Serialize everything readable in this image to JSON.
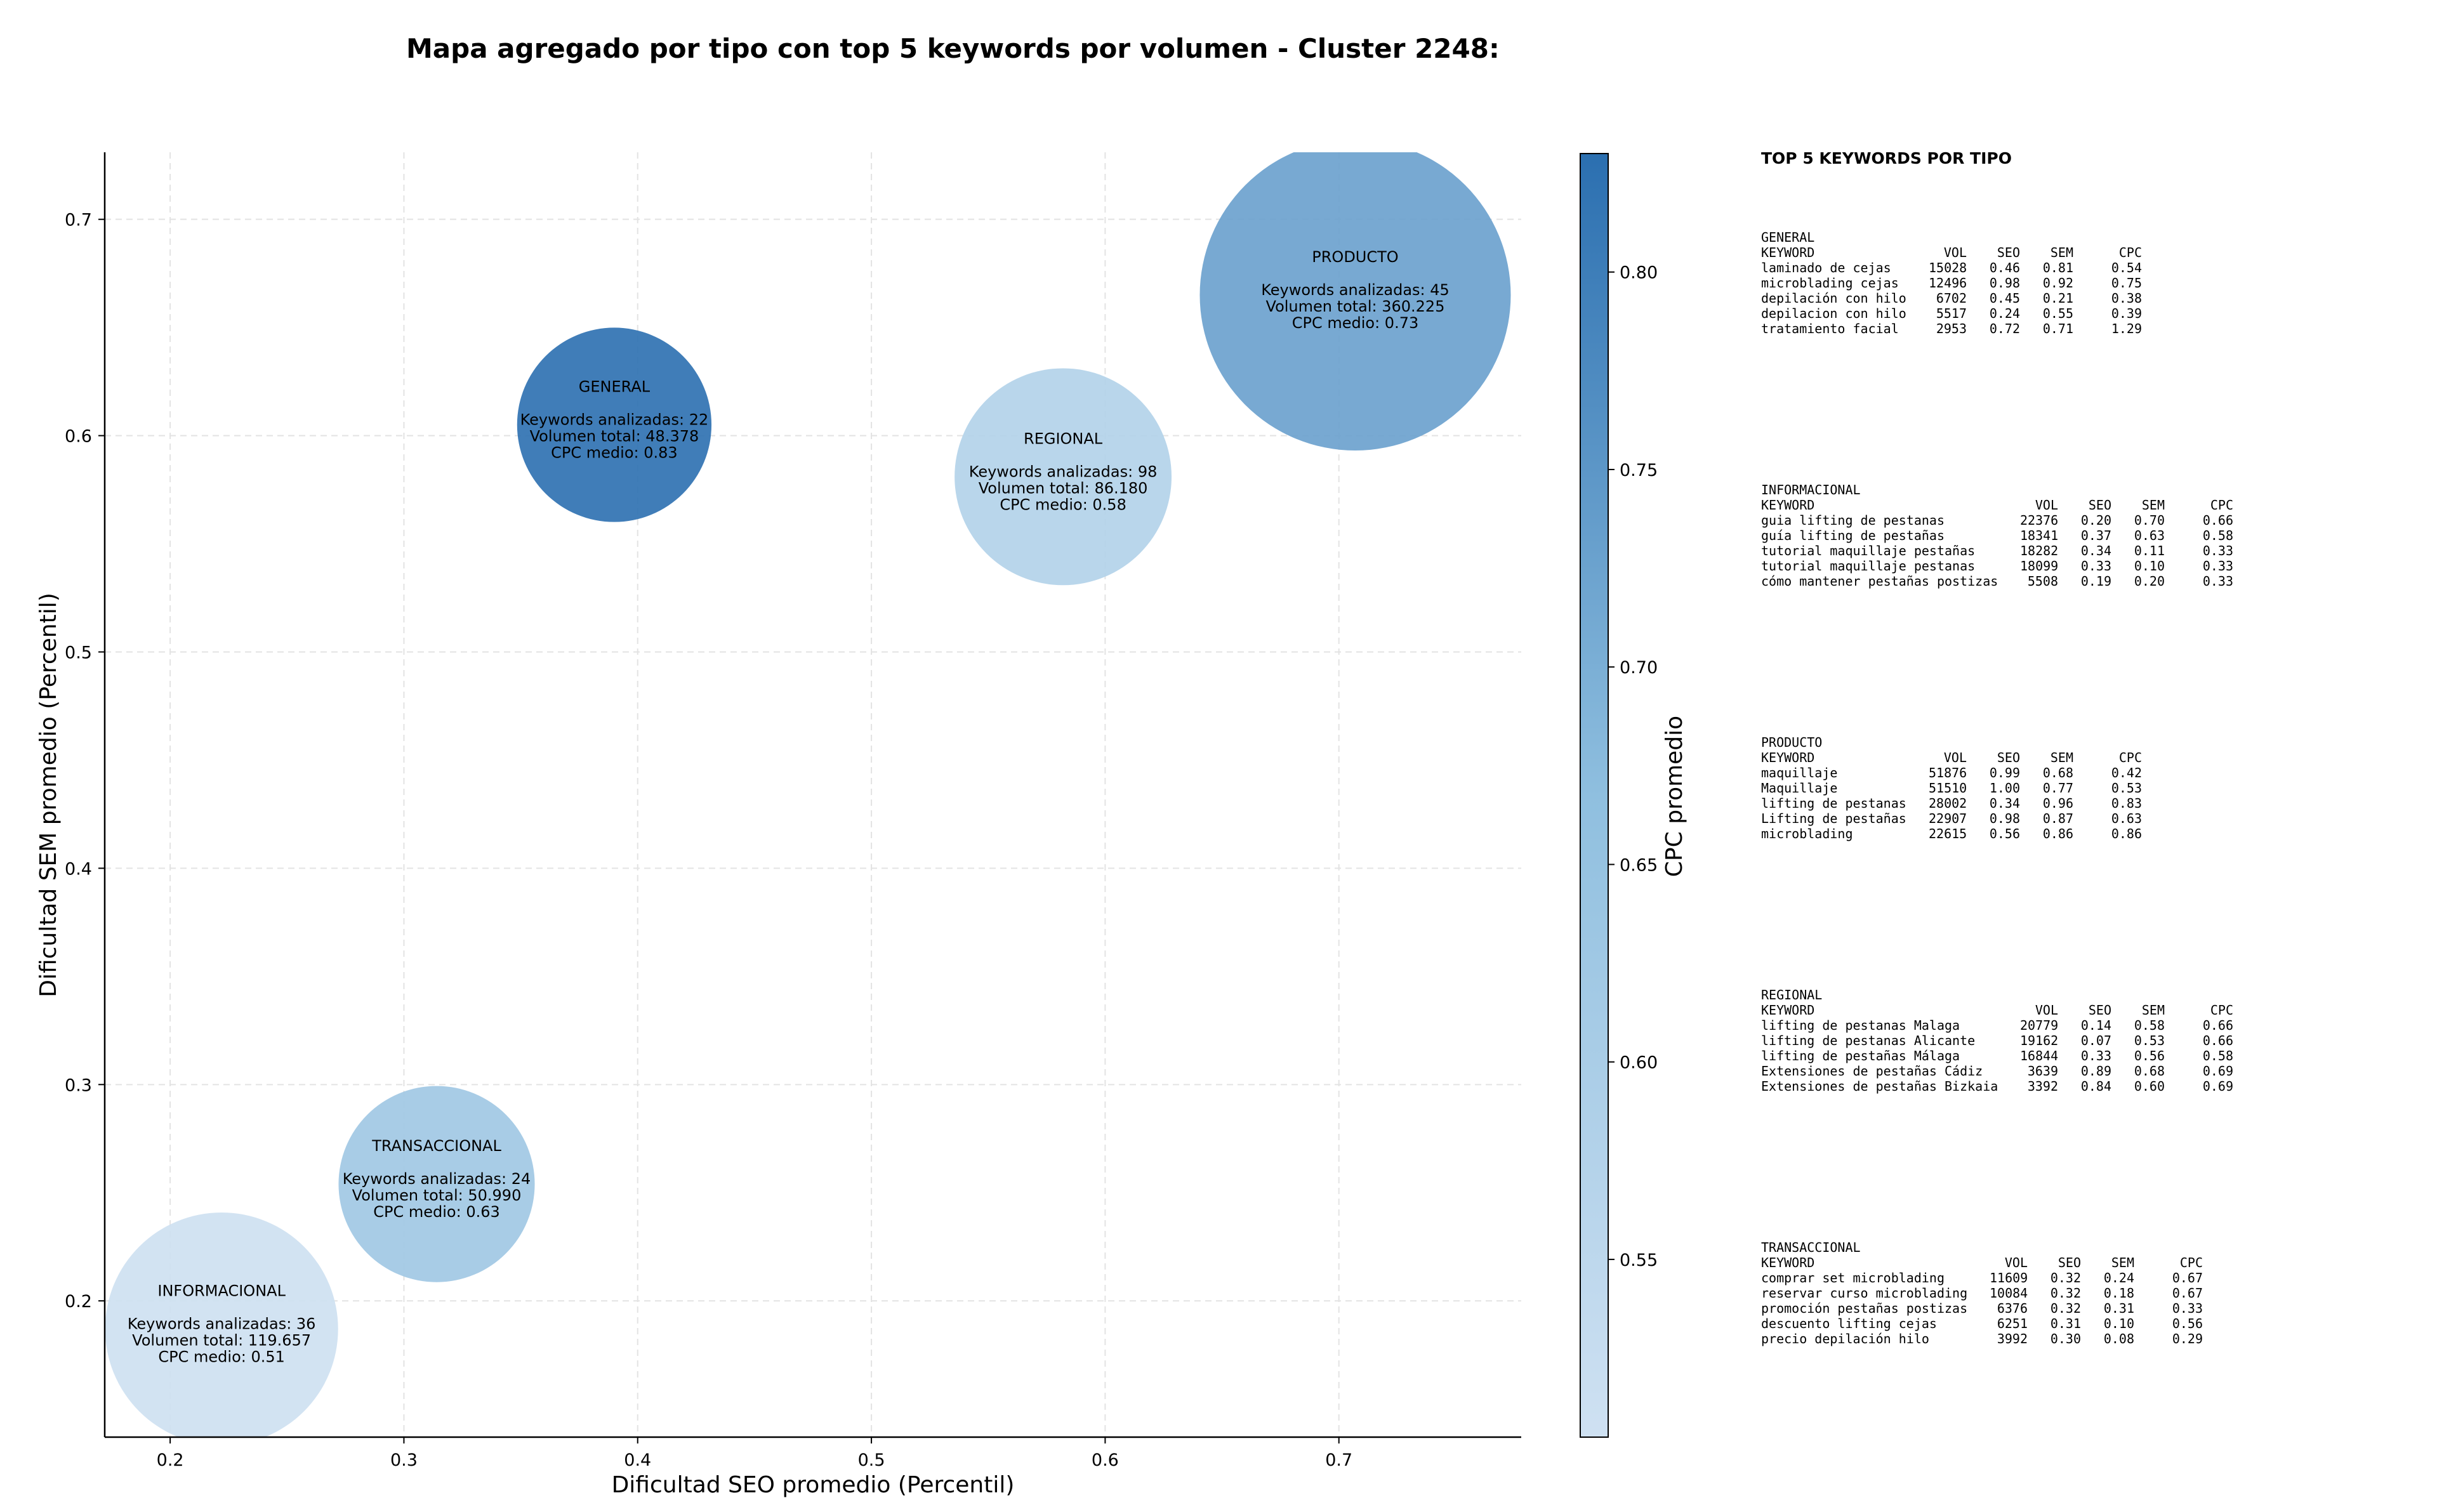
{
  "chart_data": {
    "type": "scatter",
    "title": "Mapa agregado por tipo con top 5 keywords por volumen - Cluster 2248:",
    "xlabel": "Dificultad SEO promedio (Percentil)",
    "ylabel": "Dificultad SEM promedio (Percentil)",
    "xlim": [
      0.172,
      0.778
    ],
    "ylim": [
      0.137,
      0.731
    ],
    "x_ticks": [
      "0.2",
      "0.3",
      "0.4",
      "0.5",
      "0.6",
      "0.7"
    ],
    "y_ticks": [
      "0.2",
      "0.3",
      "0.4",
      "0.5",
      "0.6",
      "0.7"
    ],
    "grid": true,
    "colorbar": {
      "label": "CPC promedio",
      "min": 0.505,
      "max": 0.83,
      "ticks": [
        "0.55",
        "0.60",
        "0.65",
        "0.70",
        "0.75",
        "0.80"
      ],
      "color_low": "#cfe1f2",
      "color_high": "#2b6fb0"
    },
    "points": [
      {
        "label": "GENERAL",
        "x": 0.39,
        "y": 0.605,
        "keywords_line": "Keywords analizadas: 22",
        "volume_line": "Volumen total: 48.378",
        "cpc_line": "CPC medio: 0.83",
        "cpc": 0.83,
        "volume": 48378
      },
      {
        "label": "INFORMACIONAL",
        "x": 0.222,
        "y": 0.187,
        "keywords_line": "Keywords analizadas: 36",
        "volume_line": "Volumen total: 119.657",
        "cpc_line": "CPC medio: 0.51",
        "cpc": 0.51,
        "volume": 119657
      },
      {
        "label": "PRODUCTO",
        "x": 0.707,
        "y": 0.665,
        "keywords_line": "Keywords analizadas: 45",
        "volume_line": "Volumen total: 360.225",
        "cpc_line": "CPC medio: 0.73",
        "cpc": 0.73,
        "volume": 360225
      },
      {
        "label": "REGIONAL",
        "x": 0.582,
        "y": 0.581,
        "keywords_line": "Keywords analizadas: 98",
        "volume_line": "Volumen total: 86.180",
        "cpc_line": "CPC medio: 0.58",
        "cpc": 0.58,
        "volume": 86180
      },
      {
        "label": "TRANSACCIONAL",
        "x": 0.314,
        "y": 0.254,
        "keywords_line": "Keywords analizadas: 24",
        "volume_line": "Volumen total: 50.990",
        "cpc_line": "CPC medio: 0.63",
        "cpc": 0.63,
        "volume": 50990
      }
    ]
  },
  "side_panel": {
    "title": "TOP 5 KEYWORDS POR TIPO",
    "columns": [
      "KEYWORD",
      "VOL",
      "SEO",
      "SEM",
      "CPC"
    ],
    "groups": [
      {
        "name": "GENERAL",
        "rows": [
          [
            "laminado de cejas",
            "15028",
            "0.46",
            "0.81",
            "0.54"
          ],
          [
            "microblading cejas",
            "12496",
            "0.98",
            "0.92",
            "0.75"
          ],
          [
            "depilación con hilo",
            "6702",
            "0.45",
            "0.21",
            "0.38"
          ],
          [
            "depilacion con hilo",
            "5517",
            "0.24",
            "0.55",
            "0.39"
          ],
          [
            "tratamiento facial",
            "2953",
            "0.72",
            "0.71",
            "1.29"
          ]
        ]
      },
      {
        "name": "INFORMACIONAL",
        "rows": [
          [
            "guia lifting de pestanas",
            "22376",
            "0.20",
            "0.70",
            "0.66"
          ],
          [
            "guía lifting de pestañas",
            "18341",
            "0.37",
            "0.63",
            "0.58"
          ],
          [
            "tutorial maquillaje pestañas",
            "18282",
            "0.34",
            "0.11",
            "0.33"
          ],
          [
            "tutorial maquillaje pestanas",
            "18099",
            "0.33",
            "0.10",
            "0.33"
          ],
          [
            "cómo mantener pestañas postizas",
            "5508",
            "0.19",
            "0.20",
            "0.33"
          ]
        ]
      },
      {
        "name": "PRODUCTO",
        "rows": [
          [
            "maquillaje",
            "51876",
            "0.99",
            "0.68",
            "0.42"
          ],
          [
            "Maquillaje",
            "51510",
            "1.00",
            "0.77",
            "0.53"
          ],
          [
            "lifting de pestanas",
            "28002",
            "0.34",
            "0.96",
            "0.83"
          ],
          [
            "Lifting de pestañas",
            "22907",
            "0.98",
            "0.87",
            "0.63"
          ],
          [
            "microblading",
            "22615",
            "0.56",
            "0.86",
            "0.86"
          ]
        ]
      },
      {
        "name": "REGIONAL",
        "rows": [
          [
            "lifting de pestanas Malaga",
            "20779",
            "0.14",
            "0.58",
            "0.66"
          ],
          [
            "lifting de pestanas Alicante",
            "19162",
            "0.07",
            "0.53",
            "0.66"
          ],
          [
            "lifting de pestañas Málaga",
            "16844",
            "0.33",
            "0.56",
            "0.58"
          ],
          [
            "Extensiones de pestañas Cádiz",
            "3639",
            "0.89",
            "0.68",
            "0.69"
          ],
          [
            "Extensiones de pestañas Bizkaia",
            "3392",
            "0.84",
            "0.60",
            "0.69"
          ]
        ]
      },
      {
        "name": "TRANSACCIONAL",
        "rows": [
          [
            "comprar set microblading",
            "11609",
            "0.32",
            "0.24",
            "0.67"
          ],
          [
            "reservar curso microblading",
            "10084",
            "0.32",
            "0.18",
            "0.67"
          ],
          [
            "promoción pestañas postizas",
            "6376",
            "0.32",
            "0.31",
            "0.33"
          ],
          [
            "descuento lifting cejas",
            "6251",
            "0.31",
            "0.10",
            "0.56"
          ],
          [
            "precio depilación hilo",
            "3992",
            "0.30",
            "0.08",
            "0.29"
          ]
        ]
      }
    ]
  }
}
